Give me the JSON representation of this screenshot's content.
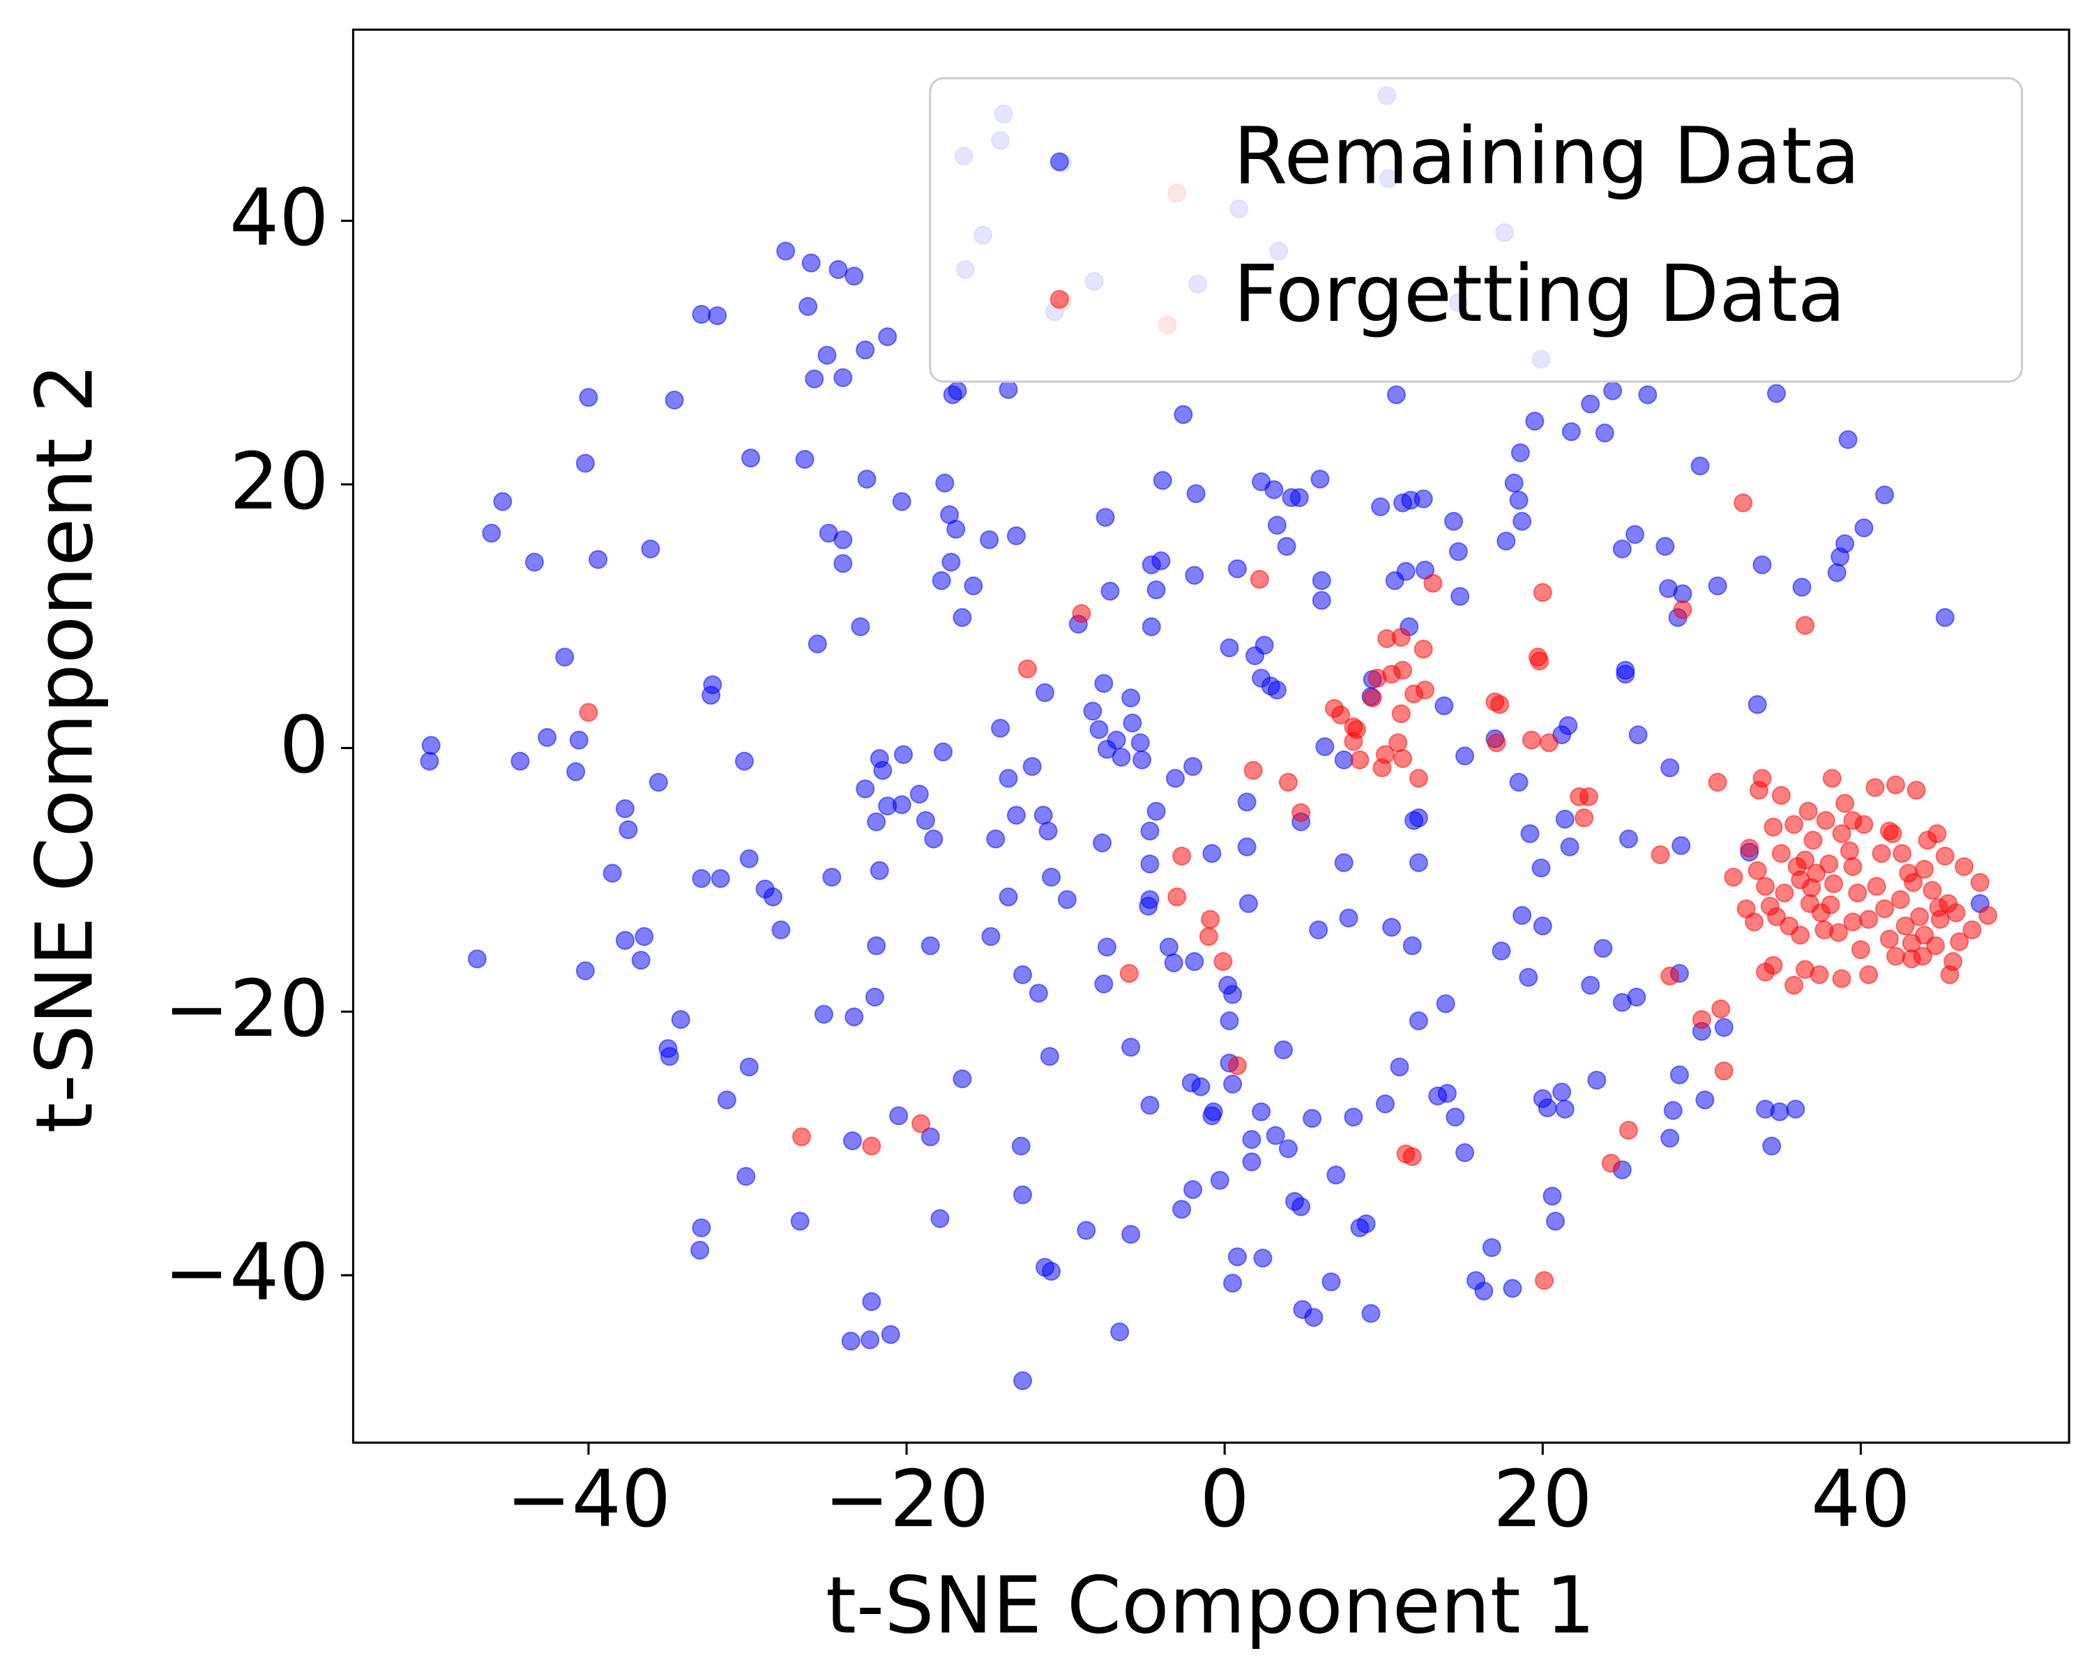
{
  "chart_data": {
    "type": "scatter",
    "xlabel": "t-SNE Component 1",
    "ylabel": "t-SNE Component 2",
    "xlim": [
      -54.8,
      53.1
    ],
    "ylim": [
      -52.7,
      54.5
    ],
    "xticks": [
      {
        "value": -40,
        "label": "−40"
      },
      {
        "value": -20,
        "label": "−20"
      },
      0,
      20,
      40
    ],
    "yticks": [
      {
        "value": -40,
        "label": "−40"
      },
      {
        "value": -20,
        "label": "−20"
      },
      0,
      20,
      40
    ],
    "legend": "upper right",
    "series": [
      {
        "name": "Remaining Data",
        "color": "blue",
        "x": [
          -49.9,
          -50,
          -47,
          -46.1,
          -45.4,
          -43.4,
          -42.6,
          -44.3,
          -41.5,
          -40,
          -40.2,
          -39.4,
          -40.6,
          -40.8,
          -40.2,
          -38.5,
          -37.7,
          -37.5,
          -37.7,
          -36.5,
          -36.7,
          -36.1,
          -35.6,
          -34.6,
          -34.2,
          -35,
          -34.9,
          -32.9,
          -31.9,
          -32.2,
          -32.3,
          -32.9,
          -31.7,
          -31.3,
          -32.9,
          -33,
          -29.8,
          -30.2,
          -29.9,
          -28.9,
          -28.4,
          -27.9,
          -29.9,
          -30.1,
          -27.6,
          -26,
          -26.2,
          -26.4,
          -25.6,
          -26.7,
          -25,
          -25.8,
          -24.3,
          -23.3,
          -24,
          -24.9,
          -24,
          -24,
          -24.7,
          -25.2,
          -23.3,
          -23.4,
          -23.5,
          -22.6,
          -21.2,
          -22.5,
          -22.9,
          -22.6,
          -21.7,
          -21.5,
          -21.9,
          -21.2,
          -21.7,
          -21.9,
          -22,
          -22.2,
          -22.3,
          -21,
          -20.3,
          -20.3,
          -20.2,
          -20.5,
          -19.2,
          -18.8,
          -18.3,
          -18.5,
          -18.5,
          -17.6,
          -17.7,
          -17.9,
          -17.8,
          -17.2,
          -17.3,
          -16.9,
          -16.8,
          -17.1,
          -16.5,
          -16.5,
          -15.8,
          -14.8,
          -14.7,
          -14.4,
          -14.1,
          -13.6,
          -13.1,
          -13.6,
          -13.1,
          -13.6,
          -12.7,
          -12.8,
          -12.7,
          -12.7,
          -12.1,
          -11.4,
          -11.1,
          -11.7,
          -11.3,
          -10.9,
          -11.3,
          -10.9,
          -11,
          -10.2,
          -9.9,
          -9.2,
          -8.7,
          -8.3,
          -7.9,
          -7.7,
          -7.5,
          -7.4,
          -7.6,
          -7.6,
          -7.2,
          -7.4,
          -6.8,
          -6.5,
          -6.6,
          -5.9,
          -5.8,
          -5.3,
          -5.2,
          -5.9,
          -5.9,
          -4.7,
          -4.3,
          -4.7,
          -4.8,
          -4.7,
          -4.6,
          -4.3,
          -4,
          -4.6,
          -4.7,
          -3.9,
          -3.5,
          -3.2,
          -3.1,
          -2.6,
          -2.7,
          -2,
          -2.1,
          -1.8,
          -1.9,
          -1.9,
          -1.5,
          -2,
          -0.8,
          -0.8,
          -0.7,
          -0.3,
          0.2,
          0.5,
          0.3,
          0.3,
          0.3,
          0.8,
          0.5,
          0.8,
          0.5,
          1.4,
          1.4,
          1.5,
          1.7,
          1.7,
          1.9,
          2.3,
          2.3,
          2.4,
          2.3,
          2.5,
          2.9,
          3.3,
          3.3,
          3.1,
          3.2,
          3.7,
          3.9,
          4,
          4.2,
          4.7,
          4.4,
          4.8,
          4.8,
          4.9,
          5.5,
          5.6,
          6,
          6.1,
          6.1,
          5.9,
          6.3,
          7,
          6.7,
          7.5,
          7.5,
          7.8,
          8.1,
          8.5,
          8.9,
          9.2,
          9.2,
          9.3,
          9.8,
          10.1,
          10.3,
          10.5,
          10.7,
          10.8,
          11,
          11.2,
          11.4,
          11.6,
          11.7,
          11.8,
          11.9,
          12.2,
          12.2,
          12.2,
          12.5,
          12.6,
          13.4,
          13.8,
          13.9,
          14,
          14.4,
          14.7,
          14.8,
          14.5,
          15.1,
          15.1,
          16.8,
          15.8,
          16.3,
          17,
          17.4,
          17.7,
          18.1,
          18.2,
          18.7,
          18.5,
          18.5,
          18.6,
          18.7,
          19.2,
          19.1,
          19.5,
          19.9,
          20,
          20,
          20.3,
          20.6,
          20.8,
          21.2,
          21.4,
          21.6,
          21.2,
          21.4,
          21.7,
          21.8,
          23,
          23,
          23.4,
          23.8,
          23.9,
          24.4,
          25,
          25,
          25.2,
          25.4,
          25.2,
          25,
          25.8,
          26,
          25.9,
          26.6,
          27.7,
          27.9,
          28,
          28,
          28.2,
          28.6,
          28.5,
          28.8,
          28.6,
          28.7,
          29.9,
          30,
          30.2,
          31,
          31.4,
          33,
          33.5,
          33.8,
          34,
          34.4,
          34.7,
          34.9,
          35.9,
          36.3,
          38.5,
          38.7,
          39,
          39.2,
          40.2,
          41.5,
          45.3,
          47.5,
          10.2,
          -13.9,
          -14.1,
          -16.4,
          0.9,
          -10.7,
          -1.7,
          -15.2,
          14.7,
          -8.2,
          17.6,
          3.4,
          -16.3,
          19.9
        ],
        "values": [
          0.2,
          -1,
          -16,
          16.3,
          18.7,
          14.1,
          0.8,
          -1,
          6.9,
          26.6,
          21.6,
          14.3,
          0.6,
          -1.8,
          -16.9,
          -9.5,
          -4.6,
          -6.2,
          -14.6,
          -14.3,
          -16.1,
          15.1,
          -2.6,
          26.4,
          -20.6,
          -22.8,
          -23.4,
          32.9,
          32.8,
          4.8,
          4,
          -9.9,
          -9.9,
          -26.7,
          -36.4,
          -38.1,
          22,
          -1,
          -8.4,
          -10.7,
          -11.3,
          -13.8,
          -24.2,
          -32.5,
          37.7,
          36.8,
          33.5,
          21.9,
          7.9,
          -35.9,
          29.8,
          28,
          36.3,
          35.8,
          28.1,
          16.3,
          15.8,
          14,
          -9.8,
          -20.2,
          -20.4,
          -29.8,
          -45,
          30.2,
          31.2,
          20.4,
          9.2,
          -3.1,
          -0.8,
          -1.7,
          -5.6,
          -4.4,
          -9.3,
          -15,
          -18.9,
          -42,
          -44.9,
          -44.5,
          18.7,
          -4.3,
          -0.5,
          -27.9,
          -3.5,
          -5.5,
          -6.9,
          -15,
          -29.5,
          20.1,
          -0.3,
          -35.7,
          12.7,
          14.1,
          17.7,
          16.6,
          27.1,
          26.8,
          9.9,
          -25.1,
          12.3,
          15.8,
          -14.3,
          -6.9,
          1.5,
          27.2,
          16.1,
          -2.3,
          -5.1,
          -11.3,
          -17.2,
          -30.2,
          -33.9,
          -48,
          -1.4,
          -5.1,
          -6.3,
          -18.6,
          -39.4,
          -39.7,
          4.2,
          -9.8,
          -23.4,
          44.4,
          -11.5,
          9.4,
          -36.6,
          2.8,
          1.4,
          -7.2,
          17.5,
          -15.1,
          -17.9,
          4.9,
          11.9,
          -0.1,
          0.6,
          -0.7,
          -44.3,
          3.8,
          1.9,
          0.4,
          -0.9,
          -36.9,
          -22.7,
          -6.3,
          -4.8,
          -8.8,
          -12,
          -11.5,
          13.9,
          12,
          14.2,
          9.2,
          -27.1,
          20.3,
          -15.1,
          -16.3,
          -2.3,
          25.3,
          -35,
          -1.4,
          -25.4,
          19.3,
          13.1,
          -16.2,
          -25.7,
          -33.5,
          -27.9,
          -8,
          -27.6,
          -32.8,
          -18,
          -18.7,
          7.6,
          -20.7,
          -23.9,
          13.6,
          -40.6,
          -38.6,
          -25.5,
          -4.1,
          -7.5,
          -11.8,
          -31.4,
          -29.7,
          7,
          5.3,
          -27.6,
          -38.7,
          20.2,
          7.8,
          4.7,
          4.4,
          16.9,
          19.6,
          -29.4,
          -22.9,
          15.3,
          -30.4,
          19,
          19,
          -34.4,
          -34.8,
          -5.6,
          -42.6,
          -28.1,
          -43.2,
          20.4,
          12.7,
          11.2,
          -13.8,
          0.1,
          -32.4,
          -40.5,
          -8.7,
          -0.9,
          -12.9,
          -28,
          -36.4,
          -36.1,
          -42.9,
          3.9,
          5.2,
          18.3,
          -27,
          43.2,
          -13.6,
          12.7,
          26.8,
          -24.2,
          18.6,
          13.4,
          9.2,
          18.8,
          -15,
          -5.5,
          -5.3,
          -8.7,
          -20.7,
          18.9,
          13.5,
          -26.4,
          3.2,
          -19.4,
          -26.2,
          17.2,
          14.9,
          11.5,
          -28,
          -0.6,
          -30.7,
          -37.9,
          -40.4,
          -41.2,
          0.7,
          -15.4,
          15.7,
          -41,
          20.1,
          17.2,
          18.8,
          -2.6,
          22.4,
          -12.7,
          -6.5,
          -17.4,
          24.8,
          -9.1,
          -13.5,
          -26.6,
          -27.3,
          -34,
          -35.9,
          1,
          -5.4,
          1.7,
          -26.1,
          -27.4,
          -7.5,
          24,
          26.1,
          -18,
          -25.2,
          -15.2,
          23.9,
          27.1,
          15.1,
          -19.3,
          5.6,
          -6.9,
          5.9,
          -32,
          16.2,
          1,
          -18.9,
          26.8,
          15.3,
          12.1,
          -1.5,
          -29.6,
          -27.5,
          -17.1,
          9.9,
          11.7,
          -24.8,
          -7.4,
          21.4,
          -21.5,
          -26.7,
          12.3,
          -21.2,
          -7.9,
          3.3,
          13.9,
          -27.4,
          -30.2,
          26.9,
          -27.6,
          -27.4,
          12.2,
          13.3,
          14.5,
          15.5,
          23.4,
          16.7,
          19.2,
          9.9,
          -11.8,
          49.5,
          48.1,
          46.1,
          44.9,
          40.9,
          33.1,
          35.2,
          38.9,
          33.8,
          35.4,
          39.1,
          37.7,
          36.3,
          29.5
        ]
      },
      {
        "name": "Forgetting Data",
        "color": "red",
        "x": [
          -40,
          -26.6,
          -22.2,
          -19.1,
          -12.4,
          -10.2,
          -9,
          -6,
          -3,
          -3.6,
          -2.7,
          -3,
          -0.9,
          -1,
          -0.1,
          0.8,
          1.8,
          2.2,
          4,
          4.8,
          6.9,
          7.3,
          8.1,
          8.3,
          8.1,
          8.5,
          9.3,
          9.6,
          10.2,
          10.5,
          11.2,
          11.1,
          10.1,
          10.9,
          11.1,
          9.9,
          11.9,
          12.5,
          12.6,
          12.2,
          11.2,
          11.4,
          11.8,
          13.1,
          17,
          17.3,
          17.1,
          19.7,
          19.8,
          20,
          19.3,
          20.4,
          20.1,
          22.3,
          22.9,
          22.6,
          24.3,
          25.4,
          27.4,
          28,
          28.8,
          30,
          31.2,
          31.4,
          31,
          32.6,
          33.8,
          36.5,
          33,
          33.5,
          34,
          34.3,
          34.5,
          35,
          35.2,
          35.5,
          35.8,
          36,
          36.2,
          36.5,
          36.8,
          37,
          37.2,
          37.5,
          37.8,
          38,
          38.3,
          38.6,
          38.8,
          39,
          39.3,
          39.5,
          39.8,
          40,
          40.2,
          40.5,
          41,
          41.3,
          41.5,
          41.8,
          42,
          42.2,
          42.5,
          42.8,
          43,
          43.2,
          43.5,
          43.7,
          44,
          44.2,
          44.5,
          44.7,
          45,
          45.3,
          45.5,
          45.8,
          46,
          46.5,
          47,
          48,
          44.8,
          42.2,
          40.5,
          37.4,
          38.8,
          35.8,
          34,
          34.5,
          33.3,
          32.8,
          32,
          33.6,
          36.5,
          38.2,
          40.9,
          41.8,
          42.6,
          43.3,
          44,
          45.6,
          46.2,
          47.5,
          36.2,
          37.7,
          39.5,
          35,
          36.7,
          39.5,
          34.7,
          36.9,
          38.1,
          43.9,
          44.9,
          43.2
        ],
        "values": [
          2.7,
          -29.5,
          -30.2,
          -28.5,
          6,
          33.9,
          10.2,
          -17.1,
          42.1,
          32.1,
          -8.2,
          -11.3,
          -13,
          -14.3,
          -16.2,
          -24.1,
          -1.7,
          12.8,
          -2.6,
          -4.9,
          3,
          2.5,
          1.6,
          1.4,
          0.5,
          -0.9,
          3.8,
          5.3,
          8.3,
          5.6,
          5.9,
          8.4,
          -0.5,
          0.4,
          2.6,
          -1.5,
          4.1,
          7.5,
          4.4,
          -2.3,
          -0.8,
          -30.8,
          -31,
          12.5,
          3.5,
          3.3,
          0.4,
          6.9,
          6.6,
          11.8,
          0.6,
          0.4,
          -40.4,
          -3.7,
          -3.7,
          -5.3,
          -31.5,
          -29,
          -8.1,
          -17.3,
          10.5,
          -20.6,
          -19.8,
          -24.5,
          -2.6,
          18.6,
          -2.3,
          9.3,
          -7.6,
          -9.3,
          -10.5,
          -12,
          -6,
          -8,
          -11,
          -13.5,
          -5.8,
          -9,
          -10,
          -8.5,
          -11.8,
          -7,
          -9.5,
          -12.5,
          -5.5,
          -8.8,
          -10.3,
          -14,
          -6.5,
          -4.2,
          -7.8,
          -9,
          -11,
          -15.3,
          -5.8,
          -13,
          -10.5,
          -8,
          -12.2,
          -14.5,
          -6.5,
          -15.8,
          -11.5,
          -13.5,
          -9.5,
          -16,
          -3.2,
          -12.8,
          -14.2,
          -7,
          -10.8,
          -15,
          -13,
          -8.2,
          -11.8,
          -16.2,
          -12.5,
          -9,
          -13.8,
          -12.7,
          -6.5,
          -2.8,
          -17.2,
          -17.2,
          -17.5,
          -18,
          -17,
          -16.5,
          -13.2,
          -12.2,
          -9.8,
          -3.2,
          -16.8,
          -2.3,
          -3,
          -6.3,
          -8,
          -10.2,
          -9.2,
          -17.2,
          -14.7,
          -10.2,
          -14.2,
          -13.8,
          -13.2,
          -3.6,
          -4.8,
          -5.5,
          -12.8,
          -10.6,
          -11.9,
          -15.8,
          -12.1,
          -14.8
        ]
      }
    ]
  }
}
